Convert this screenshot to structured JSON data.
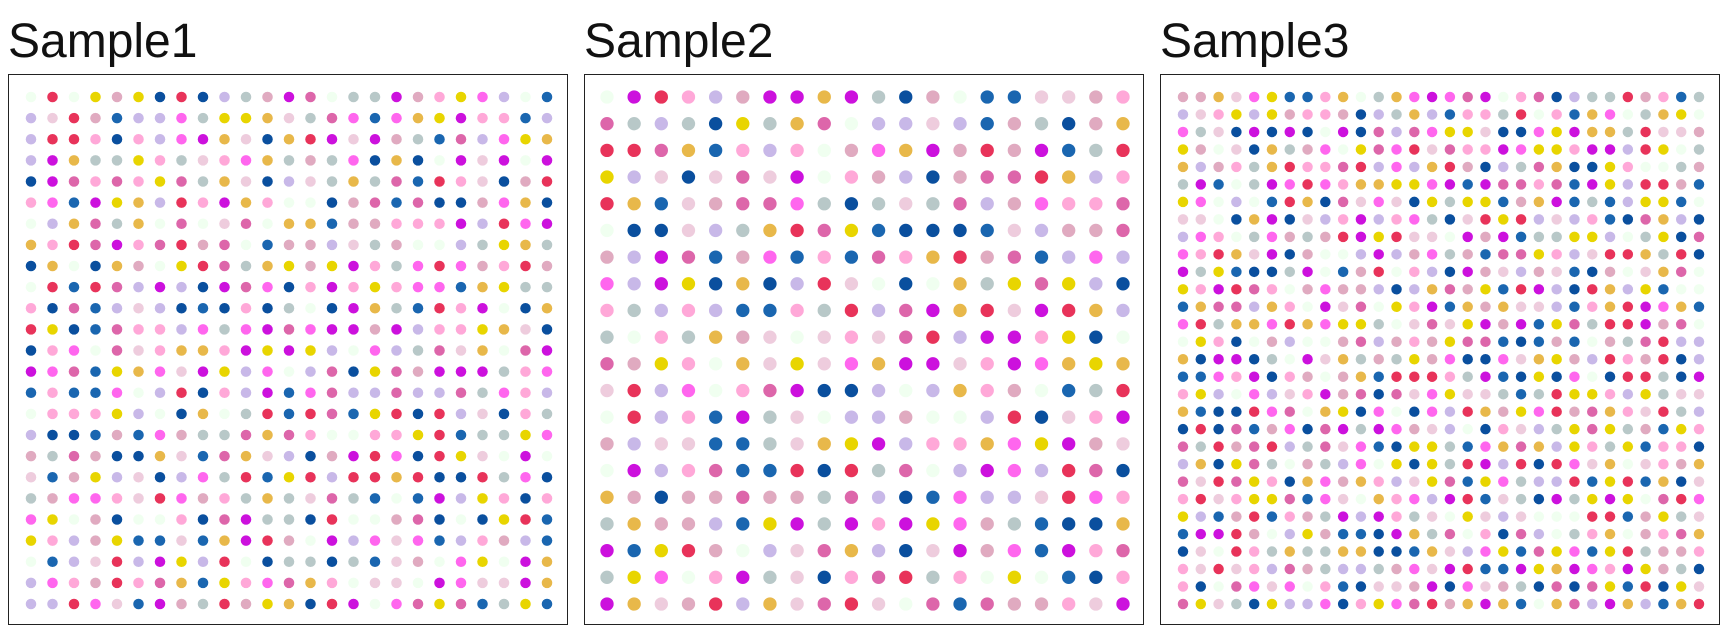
{
  "chart_data": [
    {
      "type": "scatter",
      "title": "Sample1",
      "grid": false,
      "legend": "none",
      "layout": {
        "cols": 25,
        "rows": 25,
        "pattern": "full"
      }
    },
    {
      "type": "scatter",
      "title": "Sample2",
      "grid": false,
      "legend": "none",
      "layout": {
        "cols": 20,
        "rows": 20,
        "pattern": "full"
      }
    },
    {
      "type": "scatter",
      "title": "Sample3",
      "grid": false,
      "legend": "none",
      "layout": {
        "cols": 30,
        "rows": 30,
        "pattern": "full"
      }
    }
  ],
  "palette": [
    "#cc11dd",
    "#ff66ee",
    "#e8335a",
    "#0a4f9e",
    "#e8d500",
    "#dd66aa",
    "#c8b8e8",
    "#eeccdd",
    "#e8b84a",
    "#b8c8c8",
    "#f0fff0",
    "#e0aac0",
    "#1a66b0",
    "#ffa8d8"
  ]
}
